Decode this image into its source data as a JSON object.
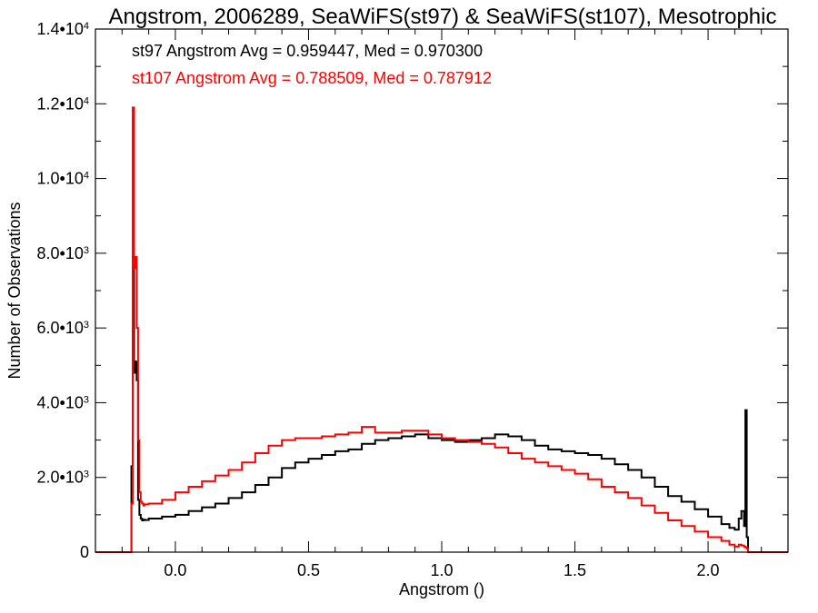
{
  "chart_data": {
    "type": "histogram",
    "title": "Angstrom, 2006289, SeaWiFS(st97) & SeaWiFS(st107), Mesotrophic",
    "xlabel": "Angstrom ()",
    "ylabel": "Number of Observations",
    "xlim": [
      -0.3,
      2.3
    ],
    "ylim": [
      0,
      14000
    ],
    "x_ticks": [
      0.0,
      0.5,
      1.0,
      1.5,
      2.0
    ],
    "x_tick_labels": [
      "0.0",
      "0.5",
      "1.0",
      "1.5",
      "2.0"
    ],
    "y_ticks": [
      {
        "value": 0,
        "mantissa": "0",
        "exp": ""
      },
      {
        "value": 2000,
        "mantissa": "2.0•10",
        "exp": "3"
      },
      {
        "value": 4000,
        "mantissa": "4.0•10",
        "exp": "3"
      },
      {
        "value": 6000,
        "mantissa": "6.0•10",
        "exp": "3"
      },
      {
        "value": 8000,
        "mantissa": "8.0•10",
        "exp": "3"
      },
      {
        "value": 10000,
        "mantissa": "1.0•10",
        "exp": "4"
      },
      {
        "value": 12000,
        "mantissa": "1.2•10",
        "exp": "4"
      },
      {
        "value": 14000,
        "mantissa": "1.4•10",
        "exp": "4"
      }
    ],
    "grid": false,
    "annotations": [
      {
        "text": "st97 Angstrom Avg = 0.959447, Med = 0.970300",
        "color": "#000000"
      },
      {
        "text": "st107 Angstrom Avg = 0.788509, Med = 0.787912",
        "color": "#ff0000"
      }
    ],
    "series": [
      {
        "color": "#000000",
        "x": [
          -0.3,
          -0.165,
          -0.16,
          -0.155,
          -0.15,
          -0.145,
          -0.14,
          -0.135,
          -0.13,
          -0.125,
          -0.12,
          -0.115,
          -0.1,
          -0.05,
          0.0,
          0.05,
          0.1,
          0.15,
          0.2,
          0.25,
          0.3,
          0.35,
          0.4,
          0.45,
          0.5,
          0.55,
          0.6,
          0.65,
          0.7,
          0.75,
          0.8,
          0.85,
          0.9,
          0.95,
          1.0,
          1.05,
          1.1,
          1.15,
          1.2,
          1.25,
          1.3,
          1.35,
          1.4,
          1.45,
          1.5,
          1.55,
          1.6,
          1.65,
          1.7,
          1.75,
          1.8,
          1.85,
          1.9,
          1.95,
          2.0,
          2.05,
          2.08,
          2.1,
          2.115,
          2.125,
          2.135,
          2.14,
          2.145,
          2.15,
          2.3
        ],
        "values": [
          0,
          2300,
          7600,
          4800,
          5100,
          4600,
          1400,
          1000,
          900,
          850,
          870,
          860,
          900,
          950,
          1000,
          1100,
          1200,
          1300,
          1450,
          1600,
          1800,
          2000,
          2250,
          2400,
          2500,
          2600,
          2700,
          2750,
          2900,
          3000,
          3050,
          3100,
          3150,
          3050,
          3000,
          2950,
          3000,
          3050,
          3150,
          3100,
          3000,
          2850,
          2750,
          2700,
          2650,
          2600,
          2500,
          2350,
          2200,
          2000,
          1750,
          1500,
          1350,
          1150,
          950,
          750,
          650,
          600,
          900,
          1100,
          700,
          3800,
          400,
          0,
          0
        ]
      },
      {
        "color": "#ff0000",
        "x": [
          -0.3,
          -0.165,
          -0.16,
          -0.155,
          -0.15,
          -0.145,
          -0.14,
          -0.135,
          -0.13,
          -0.125,
          -0.12,
          -0.115,
          -0.1,
          -0.05,
          0.0,
          0.05,
          0.1,
          0.15,
          0.2,
          0.25,
          0.3,
          0.35,
          0.4,
          0.45,
          0.5,
          0.55,
          0.6,
          0.65,
          0.7,
          0.75,
          0.8,
          0.85,
          0.9,
          0.95,
          1.0,
          1.05,
          1.1,
          1.15,
          1.2,
          1.25,
          1.3,
          1.35,
          1.4,
          1.45,
          1.5,
          1.55,
          1.6,
          1.65,
          1.7,
          1.75,
          1.8,
          1.85,
          1.9,
          1.95,
          2.0,
          2.05,
          2.08,
          2.1,
          2.115,
          2.125,
          2.135,
          2.14,
          2.145,
          2.15,
          2.3
        ],
        "values": [
          0,
          1300,
          11900,
          7600,
          7900,
          6000,
          3000,
          1600,
          1350,
          1300,
          1250,
          1280,
          1300,
          1400,
          1600,
          1750,
          1900,
          2050,
          2200,
          2400,
          2650,
          2850,
          3000,
          3050,
          3050,
          3100,
          3150,
          3200,
          3350,
          3200,
          3200,
          3250,
          3250,
          3150,
          3050,
          3000,
          2950,
          2900,
          2800,
          2650,
          2500,
          2400,
          2300,
          2200,
          2100,
          1950,
          1750,
          1600,
          1450,
          1250,
          1050,
          850,
          700,
          550,
          400,
          300,
          200,
          150,
          200,
          180,
          150,
          130,
          100,
          0,
          0
        ]
      }
    ]
  }
}
